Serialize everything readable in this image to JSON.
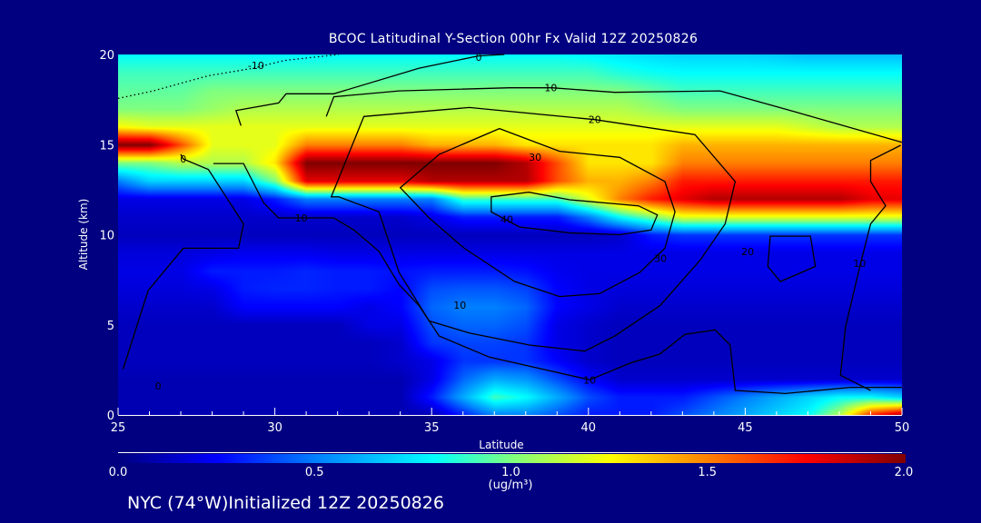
{
  "chart_data": {
    "type": "heatmap",
    "title": "BCOC Latitudinal Y-Section 00hr  Fx Valid 12Z 20250826",
    "xlabel": "Latitude",
    "ylabel": "Altitude (km)",
    "xlim": [
      25,
      50
    ],
    "ylim": [
      0,
      20
    ],
    "xticks": [
      25,
      30,
      35,
      40,
      45,
      50
    ],
    "yticks": [
      0,
      5,
      10,
      15,
      20
    ],
    "grid": false,
    "lat": [
      25,
      26,
      27,
      28,
      29,
      30,
      31,
      32,
      33,
      34,
      35,
      36,
      37,
      38,
      39,
      40,
      41,
      42,
      43,
      44,
      45,
      46,
      47,
      48,
      49,
      50
    ],
    "alt": [
      0,
      1,
      2,
      3,
      4,
      5,
      6,
      7,
      8,
      9,
      10,
      11,
      12,
      13,
      14,
      15,
      16,
      17,
      18,
      19,
      20
    ],
    "values": [
      [
        0.1,
        0.1,
        0.1,
        0.1,
        0.1,
        0.1,
        0.1,
        0.1,
        0.1,
        0.1,
        0.1,
        0.3,
        0.5,
        0.5,
        0.4,
        0.3,
        0.3,
        0.3,
        0.4,
        0.5,
        0.6,
        0.7,
        0.8,
        1.1,
        1.7,
        1.95
      ],
      [
        0.1,
        0.1,
        0.1,
        0.1,
        0.1,
        0.1,
        0.1,
        0.1,
        0.1,
        0.1,
        0.3,
        0.6,
        0.9,
        0.8,
        0.6,
        0.4,
        0.3,
        0.3,
        0.3,
        0.4,
        0.5,
        0.6,
        0.7,
        0.8,
        0.8,
        0.7
      ],
      [
        0.1,
        0.1,
        0.1,
        0.1,
        0.1,
        0.1,
        0.1,
        0.1,
        0.1,
        0.1,
        0.2,
        0.45,
        0.6,
        0.55,
        0.4,
        0.25,
        0.15,
        0.15,
        0.15,
        0.15,
        0.15,
        0.15,
        0.15,
        0.15,
        0.15,
        0.15
      ],
      [
        0.12,
        0.12,
        0.12,
        0.12,
        0.12,
        0.12,
        0.12,
        0.12,
        0.12,
        0.15,
        0.2,
        0.35,
        0.35,
        0.35,
        0.25,
        0.15,
        0.12,
        0.12,
        0.12,
        0.12,
        0.12,
        0.12,
        0.12,
        0.12,
        0.12,
        0.12
      ],
      [
        0.12,
        0.12,
        0.12,
        0.12,
        0.12,
        0.12,
        0.12,
        0.12,
        0.12,
        0.15,
        0.35,
        0.38,
        0.38,
        0.35,
        0.2,
        0.15,
        0.12,
        0.12,
        0.12,
        0.12,
        0.12,
        0.12,
        0.12,
        0.12,
        0.12,
        0.12
      ],
      [
        0.12,
        0.12,
        0.12,
        0.12,
        0.12,
        0.12,
        0.12,
        0.12,
        0.2,
        0.2,
        0.4,
        0.45,
        0.45,
        0.4,
        0.2,
        0.15,
        0.12,
        0.12,
        0.12,
        0.12,
        0.12,
        0.12,
        0.12,
        0.12,
        0.12,
        0.12
      ],
      [
        0.15,
        0.15,
        0.15,
        0.15,
        0.25,
        0.25,
        0.25,
        0.25,
        0.2,
        0.25,
        0.45,
        0.5,
        0.5,
        0.45,
        0.25,
        0.2,
        0.15,
        0.15,
        0.15,
        0.15,
        0.15,
        0.15,
        0.15,
        0.15,
        0.15,
        0.15
      ],
      [
        0.18,
        0.18,
        0.18,
        0.2,
        0.3,
        0.32,
        0.32,
        0.3,
        0.3,
        0.25,
        0.4,
        0.42,
        0.42,
        0.38,
        0.25,
        0.2,
        0.18,
        0.18,
        0.18,
        0.18,
        0.18,
        0.18,
        0.18,
        0.18,
        0.18,
        0.18
      ],
      [
        0.2,
        0.2,
        0.2,
        0.3,
        0.3,
        0.3,
        0.32,
        0.3,
        0.3,
        0.28,
        0.3,
        0.3,
        0.3,
        0.28,
        0.22,
        0.2,
        0.2,
        0.2,
        0.2,
        0.2,
        0.2,
        0.2,
        0.2,
        0.2,
        0.2,
        0.2
      ],
      [
        0.18,
        0.18,
        0.18,
        0.2,
        0.22,
        0.22,
        0.22,
        0.2,
        0.2,
        0.2,
        0.2,
        0.2,
        0.2,
        0.2,
        0.2,
        0.2,
        0.2,
        0.2,
        0.2,
        0.2,
        0.2,
        0.2,
        0.2,
        0.2,
        0.2,
        0.2
      ],
      [
        0.12,
        0.12,
        0.12,
        0.12,
        0.12,
        0.12,
        0.12,
        0.12,
        0.12,
        0.12,
        0.12,
        0.12,
        0.12,
        0.12,
        0.12,
        0.12,
        0.15,
        0.3,
        0.35,
        0.35,
        0.35,
        0.35,
        0.35,
        0.35,
        0.35,
        0.35
      ],
      [
        0.15,
        0.15,
        0.15,
        0.15,
        0.15,
        0.15,
        0.15,
        0.15,
        0.15,
        0.15,
        0.2,
        0.3,
        0.3,
        0.3,
        0.3,
        0.5,
        0.8,
        1.0,
        1.2,
        1.2,
        1.2,
        1.2,
        1.2,
        1.2,
        1.2,
        1.2
      ],
      [
        0.2,
        0.2,
        0.2,
        0.2,
        0.2,
        0.3,
        0.5,
        0.5,
        0.5,
        0.5,
        0.5,
        0.9,
        0.9,
        0.9,
        0.9,
        1.2,
        1.5,
        1.7,
        1.8,
        1.9,
        1.9,
        1.9,
        1.9,
        1.9,
        1.8,
        1.8
      ],
      [
        0.5,
        0.7,
        0.7,
        0.7,
        0.7,
        1.0,
        1.8,
        1.8,
        1.8,
        1.8,
        1.9,
        1.9,
        1.9,
        1.9,
        1.6,
        1.4,
        1.4,
        1.5,
        1.7,
        1.7,
        1.7,
        1.7,
        1.7,
        1.7,
        1.7,
        1.7
      ],
      [
        1.0,
        1.0,
        1.1,
        1.1,
        1.1,
        1.3,
        2.0,
        2.0,
        2.0,
        2.0,
        2.0,
        2.0,
        2.0,
        1.9,
        1.6,
        1.3,
        1.3,
        1.3,
        1.5,
        1.5,
        1.5,
        1.5,
        1.5,
        1.5,
        1.5,
        1.5
      ],
      [
        2.0,
        2.0,
        1.6,
        1.2,
        1.2,
        1.2,
        1.5,
        1.5,
        1.5,
        1.5,
        1.4,
        1.4,
        1.4,
        1.3,
        1.3,
        1.3,
        1.3,
        1.3,
        1.4,
        1.4,
        1.4,
        1.4,
        1.4,
        1.4,
        1.4,
        1.4
      ],
      [
        1.25,
        1.2,
        1.2,
        1.2,
        1.2,
        1.2,
        1.2,
        1.2,
        1.2,
        1.2,
        1.2,
        1.2,
        1.2,
        1.2,
        1.2,
        1.2,
        1.2,
        1.2,
        1.2,
        1.2,
        1.2,
        1.2,
        1.15,
        1.1,
        1.1,
        1.1
      ],
      [
        1.0,
        1.0,
        1.0,
        1.05,
        1.1,
        1.1,
        1.1,
        1.1,
        1.1,
        1.1,
        1.1,
        1.1,
        1.1,
        1.1,
        1.1,
        1.1,
        1.1,
        1.05,
        1.0,
        1.0,
        1.0,
        1.0,
        1.0,
        1.0,
        1.0,
        1.0
      ],
      [
        0.95,
        0.95,
        0.95,
        1.0,
        1.0,
        1.0,
        1.0,
        1.0,
        1.0,
        1.0,
        1.0,
        1.0,
        1.0,
        1.0,
        1.0,
        1.0,
        1.0,
        0.95,
        0.9,
        0.9,
        0.9,
        0.9,
        0.9,
        0.9,
        0.9,
        0.9
      ],
      [
        0.9,
        0.9,
        0.9,
        0.9,
        0.9,
        0.9,
        0.9,
        0.9,
        0.9,
        0.9,
        0.9,
        0.9,
        0.9,
        0.9,
        0.9,
        0.9,
        0.85,
        0.82,
        0.8,
        0.8,
        0.8,
        0.8,
        0.8,
        0.8,
        0.8,
        0.8
      ],
      [
        0.8,
        0.8,
        0.8,
        0.8,
        0.8,
        0.8,
        0.8,
        0.8,
        0.8,
        0.8,
        0.8,
        0.8,
        0.8,
        0.8,
        0.8,
        0.78,
        0.75,
        0.72,
        0.7,
        0.7,
        0.7,
        0.68,
        0.65,
        0.65,
        0.65,
        0.65
      ]
    ],
    "colorbar": {
      "range": [
        0,
        2
      ],
      "ticks": [
        "0.0",
        "0.5",
        "1.0",
        "1.5",
        "2.0"
      ],
      "units": "(ug/m³)",
      "stops": [
        [
          0.0,
          "#000080"
        ],
        [
          0.25,
          "#0000ff"
        ],
        [
          0.5,
          "#0080ff"
        ],
        [
          0.8,
          "#00ffff"
        ],
        [
          1.0,
          "#80ff80"
        ],
        [
          1.25,
          "#ffff00"
        ],
        [
          1.5,
          "#ff8000"
        ],
        [
          1.75,
          "#ff0000"
        ],
        [
          2.0,
          "#800000"
        ]
      ]
    },
    "contours": [
      {
        "level": -10,
        "dashed": true,
        "points": [
          [
            25,
            17.56
          ],
          [
            26.12,
            17.98
          ],
          [
            27.88,
            18.82
          ],
          [
            29.32,
            19.24
          ],
          [
            30.28,
            19.66
          ],
          [
            32.04,
            20
          ]
        ]
      },
      {
        "level": 0,
        "points": [
          [
            28.92,
            16.05
          ],
          [
            28.76,
            16.89
          ],
          [
            30.12,
            17.31
          ],
          [
            30.36,
            17.82
          ],
          [
            31.88,
            17.82
          ],
          [
            34.6,
            19.24
          ],
          [
            36.49,
            19.92
          ],
          [
            37.32,
            20
          ]
        ]
      },
      {
        "level": 10,
        "points": [
          [
            31.64,
            16.56
          ],
          [
            31.88,
            17.65
          ],
          [
            33.96,
            17.98
          ],
          [
            37.48,
            18.15
          ],
          [
            38.84,
            18.15
          ],
          [
            40.84,
            17.9
          ],
          [
            44.2,
            17.98
          ],
          [
            46.6,
            16.81
          ],
          [
            50,
            15.13
          ]
        ]
      },
      {
        "level": 20,
        "closed": true,
        "points": [
          [
            31.8,
            12.1
          ],
          [
            32.84,
            16.56
          ],
          [
            36.2,
            17.06
          ],
          [
            40.2,
            16.39
          ],
          [
            43.4,
            15.55
          ],
          [
            44.68,
            12.95
          ],
          [
            44.36,
            10.6
          ],
          [
            43.56,
            8.58
          ],
          [
            42.28,
            6.06
          ],
          [
            40.84,
            4.38
          ],
          [
            39.88,
            3.54
          ],
          [
            38.12,
            3.88
          ],
          [
            36.2,
            4.55
          ],
          [
            34.92,
            5.22
          ],
          [
            33.96,
            7.91
          ],
          [
            33.32,
            11.27
          ],
          [
            32.04,
            12.1
          ]
        ]
      },
      {
        "level": 30,
        "closed": true,
        "points": [
          [
            34.0,
            12.61
          ],
          [
            35.24,
            14.46
          ],
          [
            37.16,
            15.89
          ],
          [
            39.08,
            14.63
          ],
          [
            41.0,
            14.29
          ],
          [
            42.44,
            12.95
          ],
          [
            42.76,
            11.27
          ],
          [
            42.44,
            9.25
          ],
          [
            41.64,
            7.91
          ],
          [
            40.36,
            6.73
          ],
          [
            39.08,
            6.57
          ],
          [
            37.64,
            7.41
          ],
          [
            36.04,
            9.25
          ],
          [
            34.92,
            10.93
          ]
        ]
      },
      {
        "level": 40,
        "closed": true,
        "points": [
          [
            36.9,
            12.1
          ],
          [
            38.1,
            12.36
          ],
          [
            39.4,
            11.94
          ],
          [
            41.6,
            11.6
          ],
          [
            42.2,
            11.1
          ],
          [
            42.0,
            10.26
          ],
          [
            41.0,
            10.0
          ],
          [
            39.4,
            10.1
          ],
          [
            37.8,
            10.43
          ],
          [
            36.9,
            11.27
          ]
        ]
      },
      {
        "level": 10,
        "points": [
          [
            28.04,
            13.95
          ],
          [
            29.0,
            13.95
          ],
          [
            29.64,
            11.77
          ],
          [
            30.12,
            10.93
          ],
          [
            31.88,
            10.93
          ],
          [
            32.52,
            10.26
          ],
          [
            33.32,
            9.08
          ],
          [
            33.96,
            7.24
          ],
          [
            34.6,
            6.06
          ],
          [
            35.24,
            4.38
          ],
          [
            36.84,
            3.21
          ],
          [
            40.04,
            1.95
          ],
          [
            41.32,
            2.87
          ],
          [
            42.28,
            3.38
          ],
          [
            43.08,
            4.47
          ],
          [
            44.04,
            4.72
          ],
          [
            44.52,
            3.88
          ],
          [
            44.68,
            1.36
          ],
          [
            46.28,
            1.19
          ],
          [
            48.36,
            1.53
          ],
          [
            50,
            1.53
          ]
        ]
      },
      {
        "level": 10,
        "points": [
          [
            49.96,
            14.96
          ],
          [
            49.0,
            14.12
          ],
          [
            49.0,
            12.95
          ],
          [
            49.48,
            11.6
          ],
          [
            49.0,
            10.6
          ],
          [
            48.68,
            8.41
          ],
          [
            48.2,
            4.89
          ],
          [
            48.04,
            2.2
          ],
          [
            49.0,
            1.36
          ]
        ]
      },
      {
        "level": 20,
        "closed": true,
        "points": [
          [
            45.8,
            9.92
          ],
          [
            47.08,
            9.92
          ],
          [
            47.24,
            8.24
          ],
          [
            46.12,
            7.4
          ],
          [
            45.72,
            8.24
          ]
        ]
      },
      {
        "level": 0,
        "points": [
          [
            25.16,
            2.54
          ],
          [
            25.96,
            6.9
          ],
          [
            27.08,
            9.25
          ],
          [
            28.84,
            9.25
          ],
          [
            29.0,
            10.6
          ],
          [
            27.88,
            13.62
          ],
          [
            27.08,
            14.2
          ],
          [
            27.0,
            14.46
          ]
        ]
      }
    ],
    "contour_labels": [
      {
        "text": "-10",
        "lat": 29.4,
        "alt": 19.4
      },
      {
        "text": "0",
        "lat": 36.5,
        "alt": 19.85
      },
      {
        "text": "10",
        "lat": 38.8,
        "alt": 18.15
      },
      {
        "text": "20",
        "lat": 40.2,
        "alt": 16.4
      },
      {
        "text": "30",
        "lat": 38.3,
        "alt": 14.3
      },
      {
        "text": "40",
        "lat": 37.4,
        "alt": 10.85
      },
      {
        "text": "10",
        "lat": 30.84,
        "alt": 10.93
      },
      {
        "text": "10",
        "lat": 40.04,
        "alt": 1.95
      },
      {
        "text": "30",
        "lat": 42.3,
        "alt": 8.7
      },
      {
        "text": "20",
        "lat": 45.08,
        "alt": 9.08
      },
      {
        "text": "10",
        "lat": 48.65,
        "alt": 8.41
      },
      {
        "text": "10",
        "lat": 35.9,
        "alt": 6.1
      },
      {
        "text": "0",
        "lat": 27.08,
        "alt": 14.2
      },
      {
        "text": "0",
        "lat": 26.28,
        "alt": 1.61
      }
    ]
  },
  "footer": "NYC (74°W)Initialized 12Z 20250826"
}
